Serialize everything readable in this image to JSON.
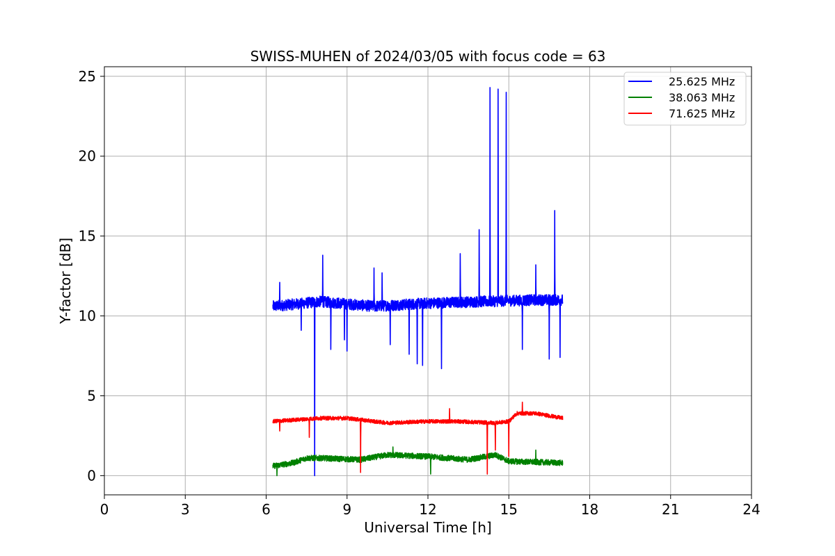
{
  "chart_data": {
    "type": "line",
    "title": "SWISS-MUHEN of 2024/03/05 with focus code = 63",
    "xlabel": "Universal Time [h]",
    "ylabel": "Y-factor [dB]",
    "xlim": [
      0,
      24
    ],
    "ylim": [
      -1.2,
      25.6
    ],
    "xticks": [
      0,
      3,
      6,
      9,
      12,
      15,
      18,
      21,
      24
    ],
    "yticks": [
      0,
      5,
      10,
      15,
      20,
      25
    ],
    "grid": true,
    "legend_position": "top-right",
    "series": [
      {
        "name": "25.625 MHz",
        "color": "#0000ff",
        "baseline": [
          [
            6.25,
            10.6
          ],
          [
            8.0,
            10.9
          ],
          [
            10.0,
            10.6
          ],
          [
            12.0,
            10.8
          ],
          [
            14.0,
            10.9
          ],
          [
            16.0,
            11.0
          ],
          [
            17.0,
            11.0
          ]
        ],
        "noise": 0.35,
        "spikes": [
          [
            6.5,
            12.1
          ],
          [
            7.3,
            9.1
          ],
          [
            7.8,
            0.0
          ],
          [
            8.1,
            13.8
          ],
          [
            8.4,
            7.9
          ],
          [
            8.9,
            8.5
          ],
          [
            9.0,
            7.8
          ],
          [
            10.0,
            13.0
          ],
          [
            10.3,
            12.7
          ],
          [
            10.6,
            8.2
          ],
          [
            11.3,
            7.6
          ],
          [
            11.6,
            7.0
          ],
          [
            11.8,
            6.9
          ],
          [
            12.5,
            6.7
          ],
          [
            13.2,
            13.9
          ],
          [
            13.9,
            15.4
          ],
          [
            14.3,
            24.3
          ],
          [
            14.6,
            24.2
          ],
          [
            14.9,
            24.0
          ],
          [
            15.5,
            7.9
          ],
          [
            16.0,
            13.2
          ],
          [
            16.5,
            7.3
          ],
          [
            16.7,
            16.6
          ],
          [
            16.9,
            7.4
          ]
        ]
      },
      {
        "name": "38.063 MHz",
        "color": "#008000",
        "baseline": [
          [
            6.25,
            0.6
          ],
          [
            7.0,
            0.8
          ],
          [
            7.5,
            1.1
          ],
          [
            8.0,
            1.1
          ],
          [
            9.5,
            1.0
          ],
          [
            10.5,
            1.3
          ],
          [
            12.0,
            1.2
          ],
          [
            13.5,
            1.0
          ],
          [
            14.5,
            1.3
          ],
          [
            15.0,
            0.9
          ],
          [
            17.0,
            0.8
          ]
        ],
        "noise": 0.18,
        "spikes": [
          [
            6.4,
            0.0
          ],
          [
            10.7,
            1.8
          ],
          [
            12.1,
            0.1
          ],
          [
            16.0,
            1.6
          ]
        ]
      },
      {
        "name": "71.625 MHz",
        "color": "#ff0000",
        "baseline": [
          [
            6.25,
            3.4
          ],
          [
            8.0,
            3.6
          ],
          [
            9.0,
            3.6
          ],
          [
            10.5,
            3.3
          ],
          [
            12.0,
            3.4
          ],
          [
            13.0,
            3.4
          ],
          [
            14.5,
            3.3
          ],
          [
            15.0,
            3.4
          ],
          [
            15.3,
            3.9
          ],
          [
            16.0,
            3.9
          ],
          [
            17.0,
            3.6
          ]
        ],
        "noise": 0.12,
        "spikes": [
          [
            6.5,
            2.8
          ],
          [
            7.6,
            2.4
          ],
          [
            9.5,
            0.2
          ],
          [
            12.8,
            4.2
          ],
          [
            14.2,
            0.1
          ],
          [
            14.5,
            1.6
          ],
          [
            15.0,
            1.2
          ],
          [
            15.5,
            4.6
          ]
        ]
      }
    ]
  }
}
